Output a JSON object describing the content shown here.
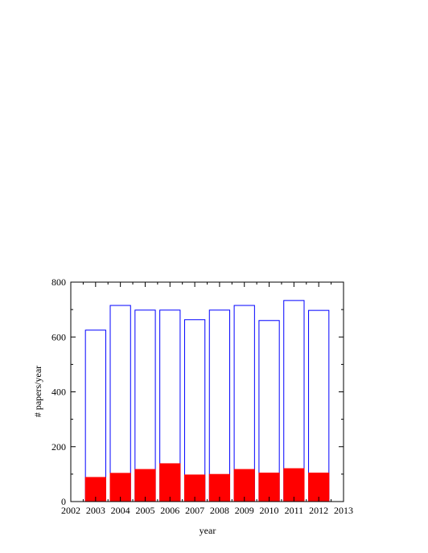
{
  "chart_data": {
    "type": "bar",
    "title": "",
    "xlabel": "year",
    "ylabel": "# papers/year",
    "xlim": [
      2002,
      2013
    ],
    "ylim": [
      0,
      800
    ],
    "x_ticks": [
      "2002",
      "2003",
      "2004",
      "2005",
      "2006",
      "2007",
      "2008",
      "2009",
      "2010",
      "2011",
      "2012",
      "2013"
    ],
    "y_ticks": [
      "0",
      "200",
      "400",
      "600",
      "800"
    ],
    "categories": [
      2003,
      2004,
      2005,
      2006,
      2007,
      2008,
      2009,
      2010,
      2011,
      2012
    ],
    "series": [
      {
        "values": [
          625,
          715,
          698,
          698,
          663,
          698,
          715,
          660,
          733,
          697
        ],
        "fill": "#ffffff",
        "stroke": "#0000ff"
      },
      {
        "values": [
          88,
          103,
          117,
          138,
          97,
          99,
          117,
          104,
          120,
          104
        ],
        "fill": "#ff0000",
        "stroke": "#ff0000"
      }
    ],
    "grid": false,
    "legend": "none"
  }
}
